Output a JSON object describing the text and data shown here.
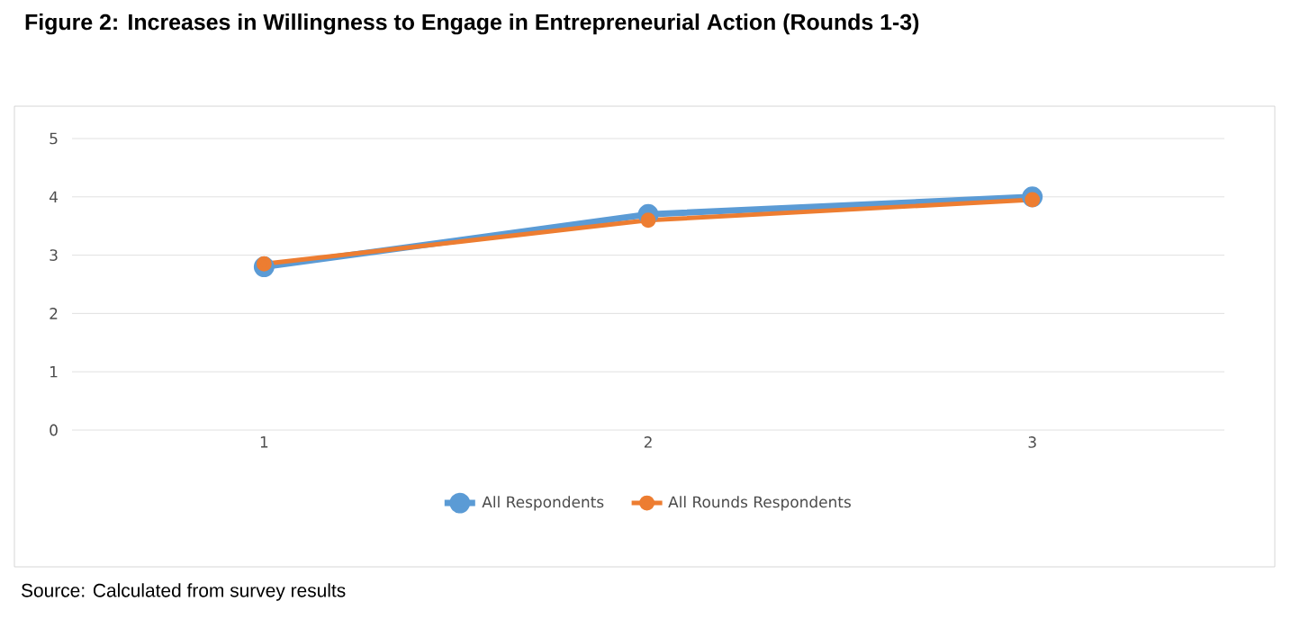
{
  "chart_data": {
    "type": "line",
    "title": "Figure 2: Increases in Willingness to Engage in Entrepreneurial Action (Rounds 1-3)",
    "categories": [
      "1",
      "2",
      "3"
    ],
    "series": [
      {
        "name": "All Respondents",
        "color": "#5b9bd5",
        "values": [
          2.8,
          3.7,
          4.0
        ]
      },
      {
        "name": "All Rounds Respondents",
        "color": "#ed7d31",
        "values": [
          2.85,
          3.6,
          3.95
        ]
      }
    ],
    "ylim": [
      0,
      5
    ],
    "yticks": [
      0,
      1,
      2,
      3,
      4,
      5
    ],
    "grid": "y",
    "legend": "bottom",
    "marker": "circle",
    "line_style": "solid",
    "annotations": [
      "Source: Calculated from survey results"
    ]
  }
}
